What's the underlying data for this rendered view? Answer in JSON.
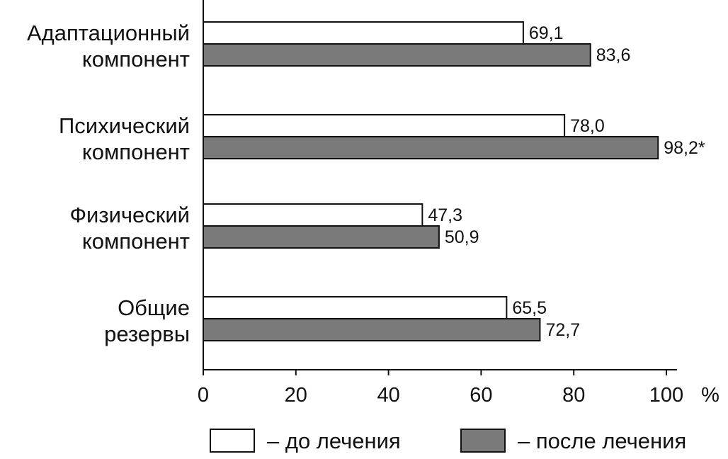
{
  "chart_data": {
    "type": "bar",
    "orientation": "horizontal",
    "categories": [
      [
        "Адаптационный",
        "компонент"
      ],
      [
        "Психический",
        "компонент"
      ],
      [
        "Физический",
        "компонент"
      ],
      [
        "Общие",
        "резервы"
      ]
    ],
    "series": [
      {
        "name": "– до лечения",
        "color": "#ffffff",
        "values": [
          69.1,
          78.0,
          47.3,
          65.5
        ],
        "labels": [
          "69,1",
          "78,0",
          "47,3",
          "65,5"
        ]
      },
      {
        "name": "– после лечения",
        "color": "#7a7a7a",
        "values": [
          83.6,
          98.2,
          50.9,
          72.7
        ],
        "labels": [
          "83,6",
          "98,2*",
          "50,9",
          "72,7"
        ]
      }
    ],
    "xticks": [
      "0",
      "20",
      "40",
      "60",
      "80",
      "100"
    ],
    "xtick_values": [
      0,
      20,
      40,
      60,
      80,
      100
    ],
    "xunit": "%",
    "xlim": [
      0,
      102.5
    ],
    "grid": false,
    "legend_placement": "bottom"
  }
}
